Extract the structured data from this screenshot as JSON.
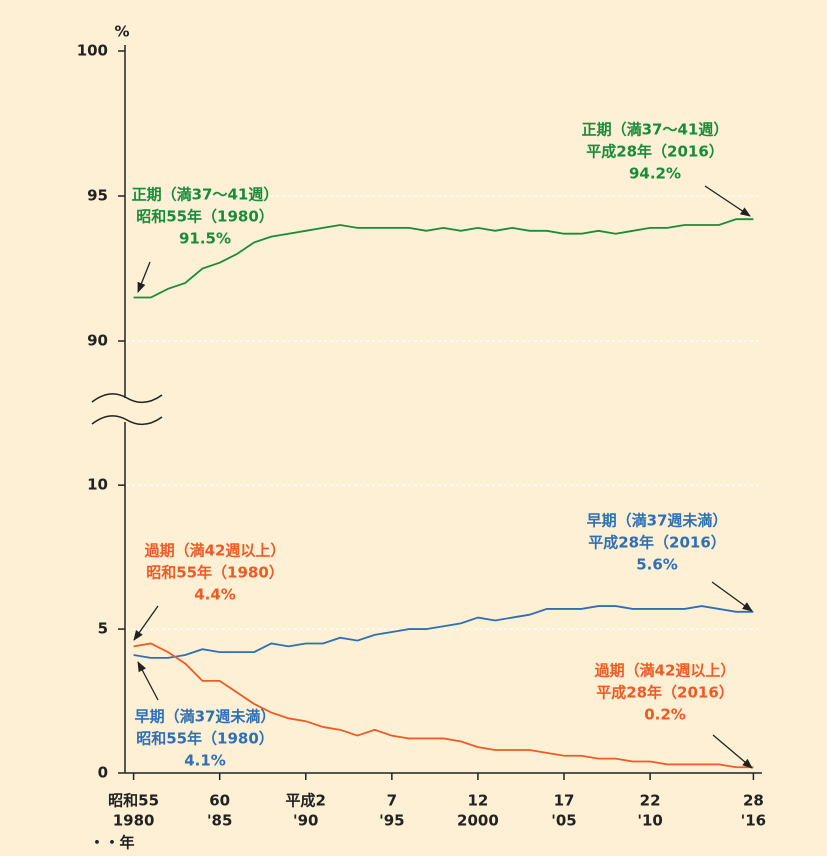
{
  "chart_data": [
    {
      "type": "line",
      "y_label": "%",
      "x": [
        1980,
        1981,
        1982,
        1983,
        1984,
        1985,
        1986,
        1987,
        1988,
        1989,
        1990,
        1991,
        1992,
        1993,
        1994,
        1995,
        1996,
        1997,
        1998,
        1999,
        2000,
        2001,
        2002,
        2003,
        2004,
        2005,
        2006,
        2007,
        2008,
        2009,
        2010,
        2011,
        2012,
        2013,
        2014,
        2015,
        2016
      ],
      "xlim": [
        1979.5,
        2016.5
      ],
      "ylim": [
        88,
        100
      ],
      "yticks": [
        90,
        95,
        100
      ],
      "grid": true,
      "series": [
        {
          "color": "#1a8a3c",
          "values": [
            91.5,
            91.5,
            91.8,
            92.0,
            92.5,
            92.7,
            93.0,
            93.4,
            93.6,
            93.7,
            93.8,
            93.9,
            94.0,
            93.9,
            93.9,
            93.9,
            93.9,
            93.8,
            93.9,
            93.8,
            93.9,
            93.8,
            93.9,
            93.8,
            93.8,
            93.7,
            93.7,
            93.8,
            93.7,
            93.8,
            93.9,
            93.9,
            94.0,
            94.0,
            94.0,
            94.2,
            94.2
          ]
        }
      ],
      "annotations": [
        {
          "color": "#1a8a3c",
          "lines": [
            "正期（満37〜41週）",
            "昭和55年（1980）",
            "91.5%"
          ]
        },
        {
          "color": "#1a8a3c",
          "lines": [
            "正期（満37〜41週）",
            "平成28年（2016）",
            "94.2%"
          ]
        }
      ]
    },
    {
      "type": "line",
      "x": [
        1980,
        1981,
        1982,
        1983,
        1984,
        1985,
        1986,
        1987,
        1988,
        1989,
        1990,
        1991,
        1992,
        1993,
        1994,
        1995,
        1996,
        1997,
        1998,
        1999,
        2000,
        2001,
        2002,
        2003,
        2004,
        2005,
        2006,
        2007,
        2008,
        2009,
        2010,
        2011,
        2012,
        2013,
        2014,
        2015,
        2016
      ],
      "xlim": [
        1979.5,
        2016.5
      ],
      "ylim": [
        0,
        11.5
      ],
      "yticks": [
        0,
        5,
        10
      ],
      "grid": true,
      "xticks": [
        {
          "value": 1980,
          "label": [
            "昭和55",
            "1980"
          ]
        },
        {
          "value": 1985,
          "label": [
            "60",
            "'85"
          ]
        },
        {
          "value": 1990,
          "label": [
            "平成2",
            "'90"
          ]
        },
        {
          "value": 1995,
          "label": [
            "7",
            "'95"
          ]
        },
        {
          "value": 2000,
          "label": [
            "12",
            "2000"
          ]
        },
        {
          "value": 2005,
          "label": [
            "17",
            "'05"
          ]
        },
        {
          "value": 2010,
          "label": [
            "22",
            "'10"
          ]
        },
        {
          "value": 2016,
          "label": [
            "28",
            "'16"
          ]
        }
      ],
      "x_label": "・・年",
      "series": [
        {
          "color": "#2e6fb5",
          "values": [
            4.1,
            4.0,
            4.0,
            4.1,
            4.3,
            4.2,
            4.2,
            4.2,
            4.5,
            4.4,
            4.5,
            4.5,
            4.7,
            4.6,
            4.8,
            4.9,
            5.0,
            5.0,
            5.1,
            5.2,
            5.4,
            5.3,
            5.4,
            5.5,
            5.7,
            5.7,
            5.7,
            5.8,
            5.8,
            5.7,
            5.7,
            5.7,
            5.7,
            5.8,
            5.7,
            5.6,
            5.6
          ]
        },
        {
          "color": "#f05a24",
          "values": [
            4.4,
            4.5,
            4.2,
            3.8,
            3.2,
            3.2,
            2.8,
            2.4,
            2.1,
            1.9,
            1.8,
            1.6,
            1.5,
            1.3,
            1.5,
            1.3,
            1.2,
            1.2,
            1.2,
            1.1,
            0.9,
            0.8,
            0.8,
            0.8,
            0.7,
            0.6,
            0.6,
            0.5,
            0.5,
            0.4,
            0.4,
            0.3,
            0.3,
            0.3,
            0.3,
            0.2,
            0.2
          ]
        }
      ],
      "annotations": [
        {
          "color": "#f05a24",
          "lines": [
            "過期（満42週以上）",
            "昭和55年（1980）",
            "4.4%"
          ]
        },
        {
          "color": "#2e6fb5",
          "lines": [
            "早期（満37週未満）",
            "昭和55年（1980）",
            "4.1%"
          ]
        },
        {
          "color": "#2e6fb5",
          "lines": [
            "早期（満37週未満）",
            "平成28年（2016）",
            "5.6%"
          ]
        },
        {
          "color": "#f05a24",
          "lines": [
            "過期（満42週以上）",
            "平成28年（2016）",
            "0.2%"
          ]
        }
      ]
    }
  ]
}
